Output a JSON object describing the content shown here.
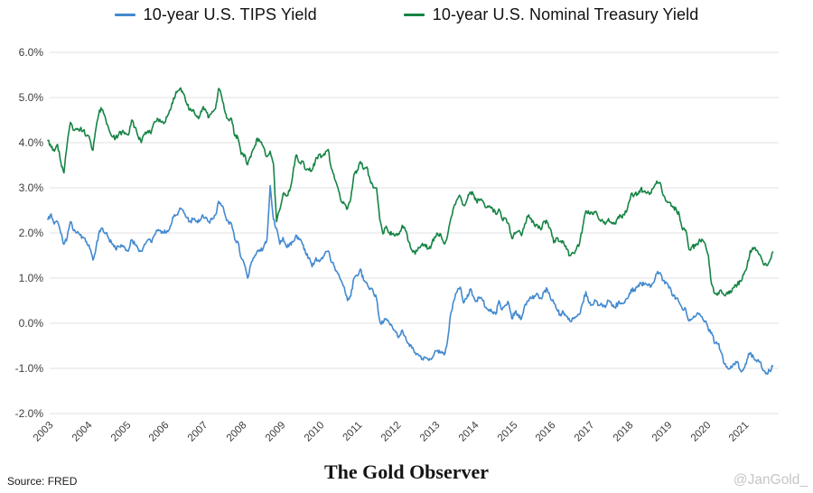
{
  "footer": {
    "source": "Source: FRED",
    "title": "The Gold Observer",
    "watermark": "@JanGold_"
  },
  "colors": {
    "tips_blue": "#4389cf",
    "nominal_green": "#168445",
    "gridline": "#e7e7e7",
    "axis_text": "#3c3c3c",
    "watermark_gray": "#c4c6c9"
  },
  "chart_data": {
    "type": "line",
    "title": "",
    "legend_position": "top",
    "grid": "horizontal",
    "x_axis": {
      "label": "",
      "tick_labels": [
        "2003",
        "2004",
        "2005",
        "2006",
        "2007",
        "2008",
        "2009",
        "2010",
        "2011",
        "2012",
        "2013",
        "2014",
        "2015",
        "2016",
        "2017",
        "2018",
        "2019",
        "2020",
        "2021"
      ],
      "start": "2003-01",
      "end": "2021-10",
      "frequency": "monthly"
    },
    "y_axis": {
      "label": "",
      "unit": "%",
      "min": -2.0,
      "max": 6.0,
      "tick_values": [
        6,
        5,
        4,
        3,
        2,
        1,
        0,
        -1,
        -2
      ],
      "tick_labels": [
        "6.0%",
        "5.0%",
        "4.0%",
        "3.0%",
        "2.0%",
        "1.0%",
        "0.0%",
        "-1.0%",
        "-2.0%"
      ]
    },
    "series": [
      {
        "name": "10-year U.S. TIPS Yield",
        "color": "#4389cf",
        "start": "2003-01",
        "values": [
          2.3,
          2.42,
          2.2,
          2.25,
          2.0,
          1.75,
          1.9,
          2.25,
          2.05,
          2.0,
          1.95,
          1.9,
          1.8,
          1.65,
          1.4,
          1.7,
          2.05,
          2.1,
          2.0,
          1.85,
          1.75,
          1.65,
          1.7,
          1.7,
          1.65,
          1.6,
          1.85,
          1.75,
          1.65,
          1.6,
          1.75,
          1.85,
          1.8,
          1.95,
          2.05,
          2.05,
          2.0,
          2.05,
          2.15,
          2.35,
          2.4,
          2.55,
          2.5,
          2.35,
          2.25,
          2.3,
          2.25,
          2.25,
          2.4,
          2.35,
          2.25,
          2.3,
          2.4,
          2.7,
          2.6,
          2.4,
          2.25,
          2.2,
          1.85,
          1.8,
          1.45,
          1.3,
          1.0,
          1.3,
          1.45,
          1.6,
          1.6,
          1.7,
          1.85,
          3.05,
          2.3,
          2.1,
          1.75,
          1.9,
          1.7,
          1.75,
          1.8,
          1.95,
          1.85,
          1.75,
          1.55,
          1.45,
          1.25,
          1.4,
          1.4,
          1.45,
          1.55,
          1.6,
          1.35,
          1.25,
          1.1,
          0.95,
          0.8,
          0.5,
          0.6,
          1.0,
          1.05,
          1.2,
          0.95,
          0.9,
          0.75,
          0.7,
          0.55,
          0.05,
          0.0,
          0.1,
          0.0,
          -0.1,
          -0.2,
          -0.3,
          -0.15,
          -0.3,
          -0.45,
          -0.55,
          -0.65,
          -0.7,
          -0.8,
          -0.75,
          -0.8,
          -0.8,
          -0.65,
          -0.6,
          -0.65,
          -0.7,
          -0.4,
          0.2,
          0.5,
          0.7,
          0.8,
          0.45,
          0.55,
          0.75,
          0.6,
          0.5,
          0.55,
          0.5,
          0.35,
          0.3,
          0.25,
          0.2,
          0.5,
          0.3,
          0.4,
          0.45,
          0.1,
          0.25,
          0.2,
          0.1,
          0.4,
          0.5,
          0.55,
          0.6,
          0.65,
          0.55,
          0.7,
          0.75,
          0.55,
          0.45,
          0.3,
          0.2,
          0.25,
          0.15,
          0.05,
          0.1,
          0.15,
          0.2,
          0.45,
          0.7,
          0.45,
          0.4,
          0.5,
          0.4,
          0.4,
          0.35,
          0.5,
          0.4,
          0.35,
          0.45,
          0.45,
          0.45,
          0.55,
          0.75,
          0.75,
          0.8,
          0.9,
          0.85,
          0.85,
          0.8,
          0.9,
          1.1,
          1.12,
          0.95,
          0.9,
          0.8,
          0.6,
          0.55,
          0.45,
          0.3,
          0.3,
          0.05,
          0.1,
          0.15,
          0.2,
          0.15,
          0.05,
          -0.15,
          -0.2,
          -0.45,
          -0.45,
          -0.65,
          -0.9,
          -1.0,
          -0.95,
          -0.9,
          -0.85,
          -1.05,
          -1.0,
          -0.8,
          -0.65,
          -0.75,
          -0.85,
          -0.85,
          -1.05,
          -1.1,
          -1.05,
          -0.95
        ]
      },
      {
        "name": "10-year U.S. Nominal Treasury Yield",
        "color": "#168445",
        "start": "2003-01",
        "values": [
          4.05,
          3.9,
          3.81,
          3.96,
          3.57,
          3.33,
          3.98,
          4.45,
          4.27,
          4.29,
          4.3,
          4.27,
          4.15,
          4.08,
          3.83,
          4.35,
          4.72,
          4.73,
          4.5,
          4.28,
          4.13,
          4.1,
          4.19,
          4.23,
          4.22,
          4.17,
          4.5,
          4.34,
          4.14,
          4.0,
          4.18,
          4.26,
          4.2,
          4.46,
          4.54,
          4.47,
          4.42,
          4.57,
          4.72,
          4.99,
          5.11,
          5.2,
          5.09,
          4.88,
          4.72,
          4.73,
          4.6,
          4.56,
          4.76,
          4.72,
          4.56,
          4.69,
          4.75,
          5.2,
          5.0,
          4.67,
          4.52,
          4.53,
          4.15,
          4.1,
          3.74,
          3.74,
          3.51,
          3.68,
          3.88,
          4.1,
          4.01,
          3.89,
          3.69,
          3.81,
          3.53,
          2.25,
          2.52,
          2.87,
          2.82,
          2.93,
          3.29,
          3.72,
          3.56,
          3.59,
          3.4,
          3.39,
          3.4,
          3.59,
          3.73,
          3.69,
          3.73,
          3.85,
          3.42,
          3.2,
          3.01,
          2.7,
          2.65,
          2.54,
          2.76,
          3.29,
          3.39,
          3.58,
          3.41,
          3.46,
          3.17,
          3.0,
          3.0,
          2.3,
          1.98,
          2.15,
          2.01,
          1.98,
          1.97,
          1.97,
          2.17,
          2.05,
          1.8,
          1.62,
          1.53,
          1.68,
          1.72,
          1.75,
          1.65,
          1.72,
          1.91,
          1.98,
          1.96,
          1.76,
          1.93,
          2.3,
          2.58,
          2.74,
          2.81,
          2.62,
          2.72,
          2.9,
          2.86,
          2.71,
          2.72,
          2.71,
          2.56,
          2.6,
          2.54,
          2.42,
          2.53,
          2.3,
          2.33,
          2.21,
          1.88,
          1.98,
          2.04,
          1.94,
          2.2,
          2.36,
          2.32,
          2.17,
          2.17,
          2.07,
          2.26,
          2.24,
          2.09,
          1.78,
          1.89,
          1.81,
          1.81,
          1.64,
          1.5,
          1.56,
          1.63,
          1.76,
          2.14,
          2.49,
          2.43,
          2.42,
          2.48,
          2.3,
          2.3,
          2.19,
          2.32,
          2.21,
          2.2,
          2.36,
          2.35,
          2.4,
          2.58,
          2.86,
          2.84,
          2.87,
          2.98,
          2.91,
          2.89,
          2.89,
          3.0,
          3.15,
          3.12,
          2.83,
          2.71,
          2.68,
          2.57,
          2.53,
          2.4,
          2.07,
          2.06,
          1.63,
          1.7,
          1.71,
          1.81,
          1.86,
          1.76,
          1.5,
          0.87,
          0.66,
          0.67,
          0.73,
          0.62,
          0.65,
          0.68,
          0.79,
          0.87,
          0.93,
          1.08,
          1.26,
          1.61,
          1.64,
          1.62,
          1.52,
          1.32,
          1.28,
          1.37,
          1.58
        ]
      }
    ]
  }
}
